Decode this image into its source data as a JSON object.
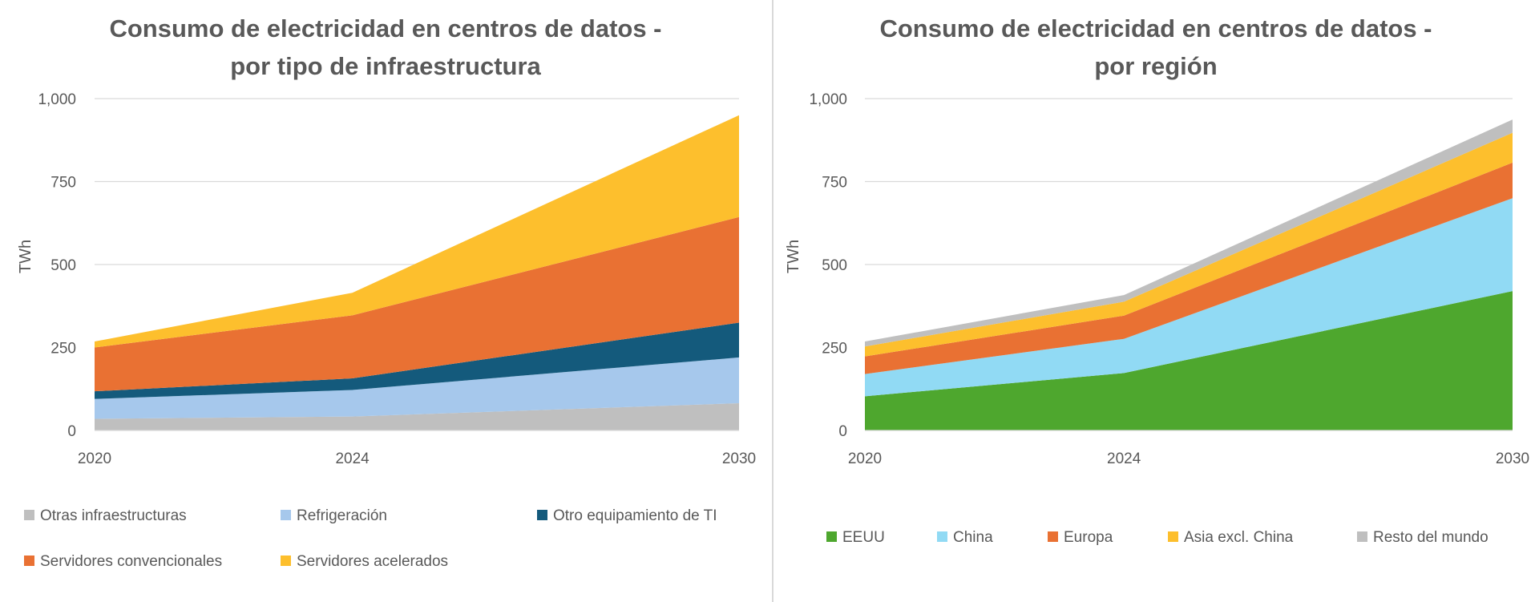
{
  "chart_data": [
    {
      "type": "area",
      "stacked": true,
      "title": "Consumo de electricidad en centros de datos -",
      "title_line2": "por tipo de infraestructura",
      "xlabel": "",
      "ylabel": "TWh",
      "x": [
        2020,
        2024,
        2030
      ],
      "x_tick_labels": [
        "2020",
        "2024",
        "2030"
      ],
      "ylim": [
        0,
        1000
      ],
      "y_ticks": [
        0,
        250,
        500,
        750,
        1000
      ],
      "y_tick_labels": [
        "0",
        "250",
        "500",
        "750",
        "1,000"
      ],
      "grid": true,
      "legend_position": "bottom",
      "series": [
        {
          "name": "Otras infraestructuras",
          "color": "#BFBFBF",
          "values": [
            35,
            42,
            82
          ]
        },
        {
          "name": "Refrigeración",
          "color": "#A6C8EC",
          "values": [
            60,
            80,
            138
          ]
        },
        {
          "name": "Otro equipamiento de TI",
          "color": "#145A7C",
          "values": [
            23,
            35,
            105
          ]
        },
        {
          "name": "Servidores convencionales",
          "color": "#E97133",
          "values": [
            132,
            190,
            318
          ]
        },
        {
          "name": "Servidores acelerados",
          "color": "#FDBF2D",
          "values": [
            18,
            68,
            307
          ]
        }
      ]
    },
    {
      "type": "area",
      "stacked": true,
      "title": "Consumo de electricidad en centros de datos -",
      "title_line2": "por región",
      "xlabel": "",
      "ylabel": "TWh",
      "x": [
        2020,
        2024,
        2030
      ],
      "x_tick_labels": [
        "2020",
        "2024",
        "2030"
      ],
      "ylim": [
        0,
        1000
      ],
      "y_ticks": [
        0,
        250,
        500,
        750,
        1000
      ],
      "y_tick_labels": [
        "0",
        "250",
        "500",
        "750",
        "1,000"
      ],
      "grid": true,
      "legend_position": "bottom",
      "series": [
        {
          "name": "EEUU",
          "color": "#4EA72E",
          "values": [
            103,
            173,
            420
          ]
        },
        {
          "name": "China",
          "color": "#91DAF4",
          "values": [
            67,
            103,
            280
          ]
        },
        {
          "name": "Europa",
          "color": "#E97133",
          "values": [
            53,
            70,
            107
          ]
        },
        {
          "name": "Asia excl. China",
          "color": "#FDBF2D",
          "values": [
            30,
            42,
            90
          ]
        },
        {
          "name": "Resto del mundo",
          "color": "#BFBFBF",
          "values": [
            15,
            20,
            40
          ]
        }
      ]
    }
  ]
}
